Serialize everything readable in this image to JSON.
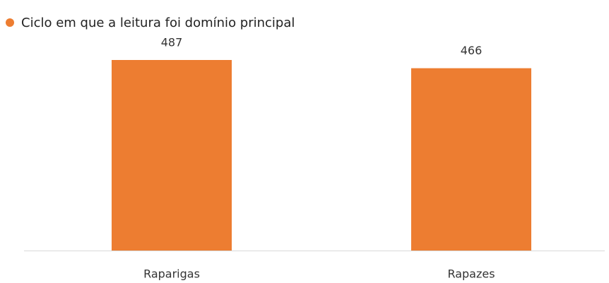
{
  "chart_data": {
    "type": "bar",
    "categories": [
      "Raparigas",
      "Rapazes"
    ],
    "series": [
      {
        "name": "Ciclo em que a leitura foi domínio principal",
        "color": "#ed7d31",
        "values": [
          487,
          466
        ]
      }
    ]
  }
}
